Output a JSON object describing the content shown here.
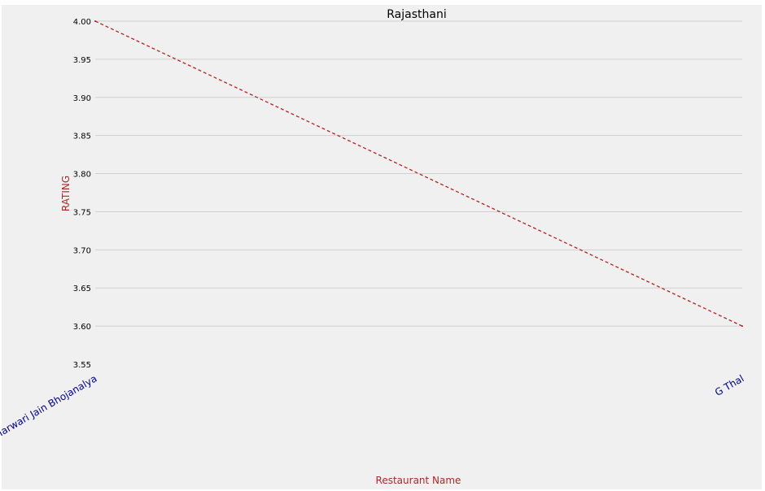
{
  "chart_data": {
    "type": "line",
    "title": "Rajasthani",
    "xlabel": "Restaurant Name",
    "ylabel": "RATING",
    "categories": [
      "Chokho Jeeman Marwari Jain Bhojanalya",
      "G Thal"
    ],
    "series": [
      {
        "values": [
          4.0,
          3.6
        ]
      }
    ],
    "ylim": [
      3.55,
      4.0
    ],
    "yticks": [
      3.55,
      3.6,
      3.65,
      3.7,
      3.75,
      3.8,
      3.85,
      3.9,
      3.95,
      4.0
    ],
    "grid": true,
    "line_style": "dashed",
    "colors": {
      "line": "#b22222",
      "axis_label": "#a52a2a",
      "tick_label_x": "#00008b",
      "tick_label_y": "#000000",
      "title": "#000000",
      "grid": "#cfcfcf",
      "plot_background": "#f0f0f0"
    }
  }
}
